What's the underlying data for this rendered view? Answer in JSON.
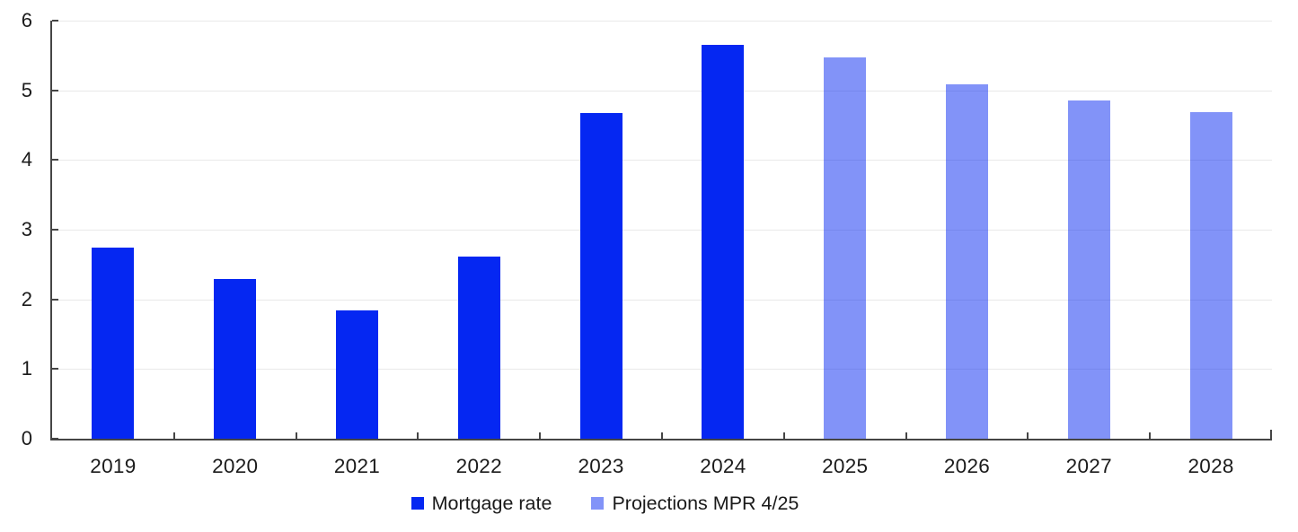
{
  "chart_data": {
    "type": "bar",
    "title": "",
    "xlabel": "",
    "ylabel": "",
    "categories": [
      "2019",
      "2020",
      "2021",
      "2022",
      "2023",
      "2024",
      "2025",
      "2026",
      "2027",
      "2028"
    ],
    "series": [
      {
        "name": "Mortgage rate",
        "color": "#0527f2",
        "fill_opacity": 1,
        "values": [
          2.74,
          2.29,
          1.84,
          2.62,
          4.67,
          5.65,
          null,
          null,
          null,
          null
        ]
      },
      {
        "name": "Projections MPR 4/25",
        "color": "#0527f2",
        "fill_opacity": 0.5,
        "values": [
          null,
          null,
          null,
          null,
          null,
          null,
          5.47,
          5.08,
          4.85,
          4.69
        ]
      }
    ],
    "ylim": [
      0,
      6
    ],
    "yticks": [
      0,
      1,
      2,
      3,
      4,
      5,
      6
    ],
    "grid": true,
    "legend_position": "bottom",
    "axis_color": "#454545",
    "gridline_color": "#e9e9e9",
    "text_color": "#1a1a1a"
  }
}
